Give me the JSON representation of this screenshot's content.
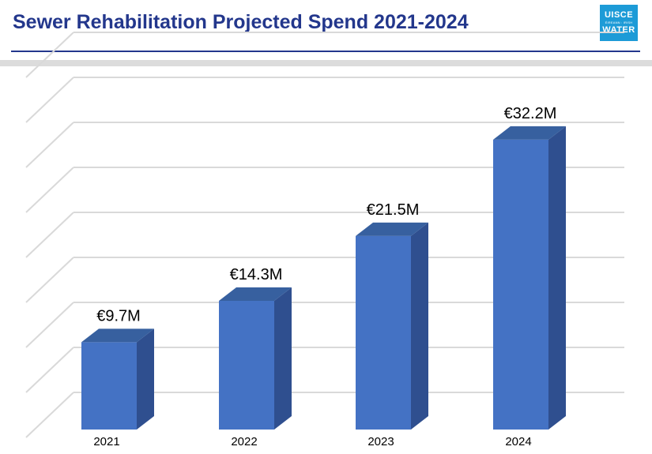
{
  "header": {
    "title": "Sewer Rehabilitation Projected Spend 2021-2024"
  },
  "logo": {
    "line1": "UISCE",
    "line2": "ÉIREANN : IRISH",
    "line3": "WATER",
    "color": "#1d9bd7"
  },
  "colors": {
    "title": "#23378c",
    "bar_front": "#4472c4",
    "bar_side": "#2f4f8f",
    "bar_top": "#37609f",
    "grid": "#d9d9d9"
  },
  "chart_data": {
    "type": "bar",
    "categories": [
      "2021",
      "2022",
      "2023",
      "2024"
    ],
    "values": [
      9.7,
      14.3,
      21.5,
      32.2
    ],
    "data_labels": [
      "€9.7M",
      "€14.3M",
      "€21.5M",
      "€32.2M"
    ],
    "title": "",
    "xlabel": "",
    "ylabel": "",
    "unit": "€M",
    "ylim": [
      0,
      40
    ],
    "grid": true,
    "style": "3d-column"
  }
}
